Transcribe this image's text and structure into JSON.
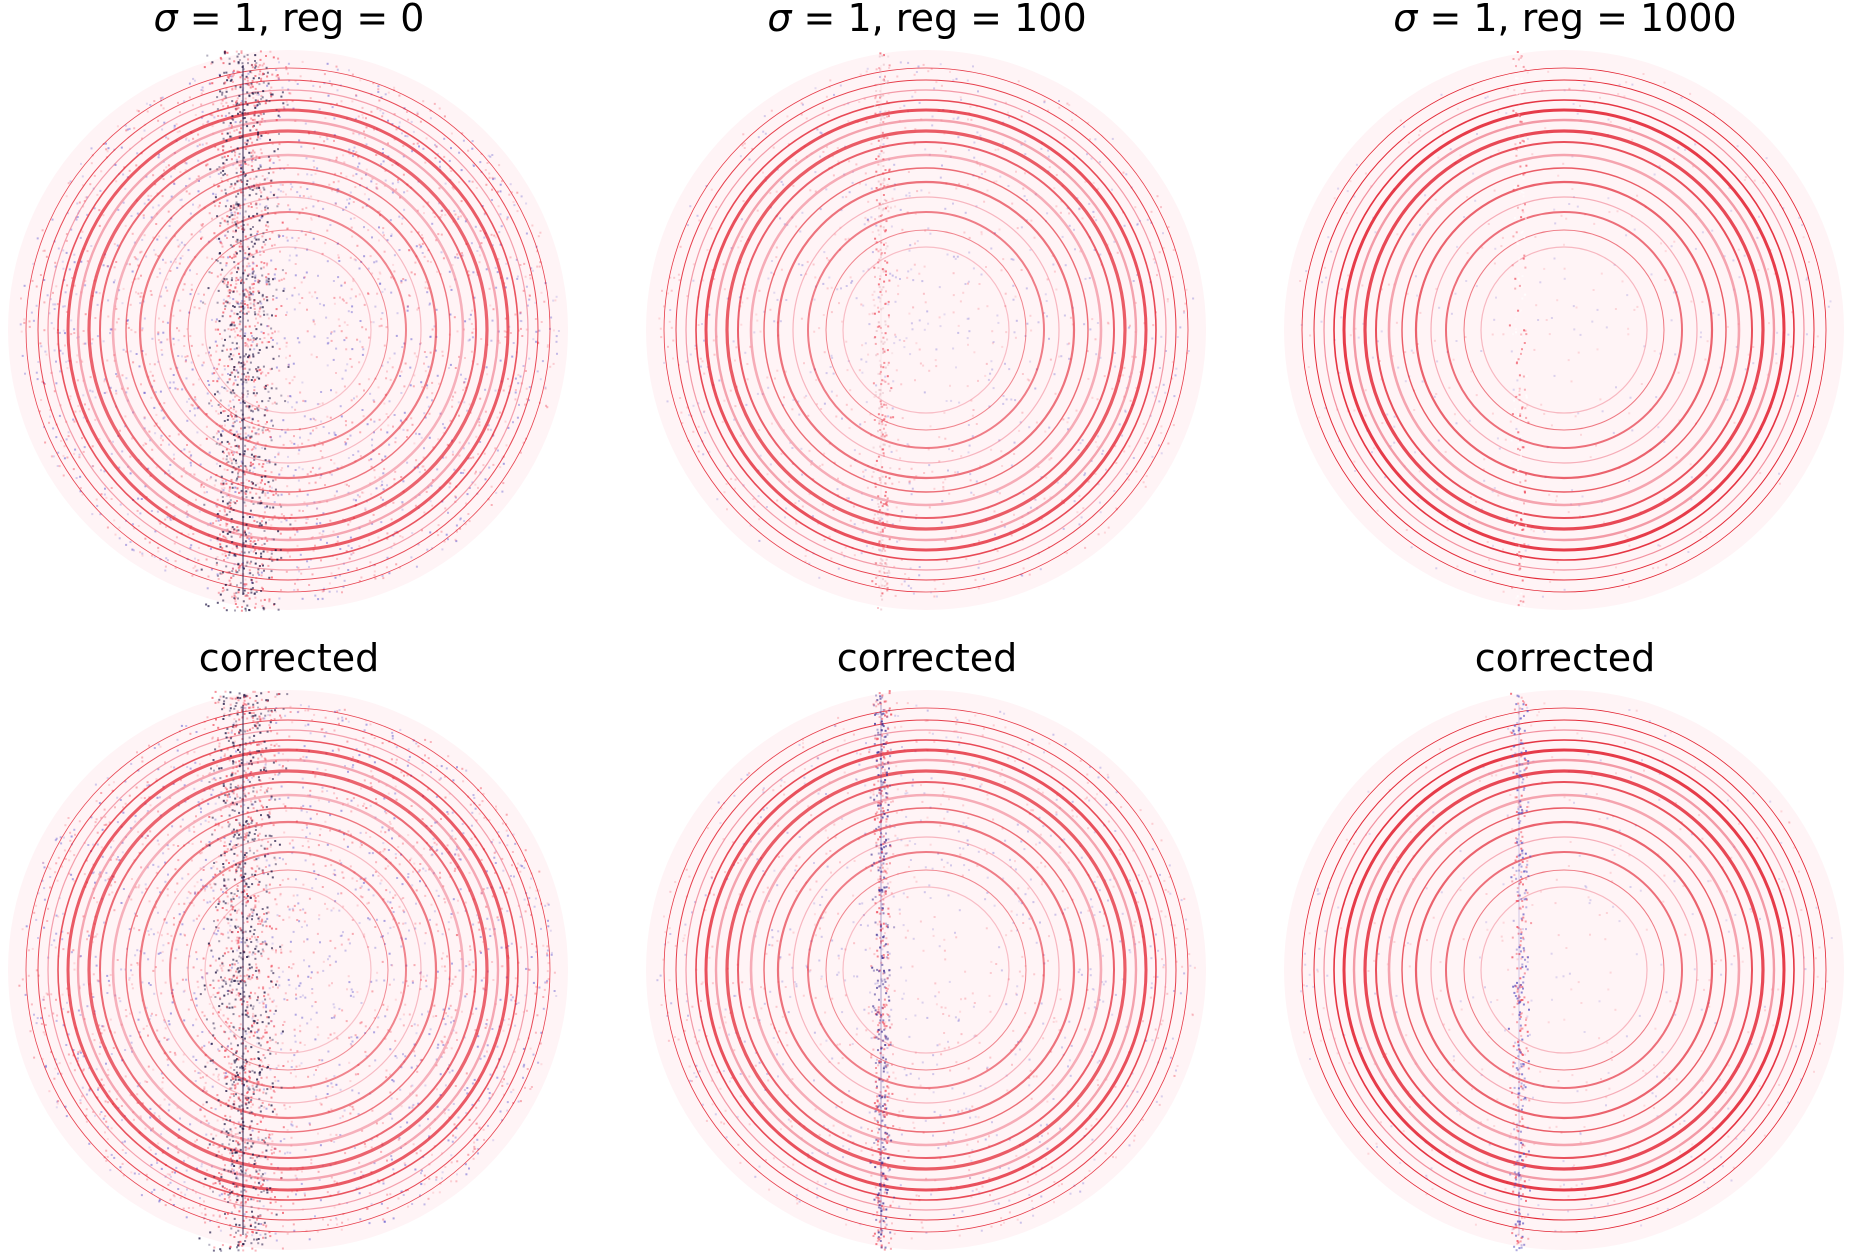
{
  "figure": {
    "panels": [
      {
        "title_sigma": "σ",
        "title_rest": " = 1, reg = 0",
        "image_label": "diffraction image sigma 1 reg 0",
        "noise": 0.95,
        "streak": 1.0,
        "ring_strength": 0.8,
        "streak_color": "#1a1040"
      },
      {
        "title_sigma": "σ",
        "title_rest": " = 1, reg = 100",
        "image_label": "diffraction image sigma 1 reg 100",
        "noise": 0.45,
        "streak": 0.25,
        "ring_strength": 0.85,
        "streak_color": "#e8c0c8"
      },
      {
        "title_sigma": "σ",
        "title_rest": " = 1, reg = 1000",
        "image_label": "diffraction image sigma 1 reg 1000",
        "noise": 0.18,
        "streak": 0.15,
        "ring_strength": 0.95,
        "streak_color": "#ffffff"
      },
      {
        "title_sigma": "",
        "title_rest": "corrected",
        "image_label": "corrected diffraction image reg 0",
        "noise": 0.95,
        "streak": 1.0,
        "ring_strength": 0.8,
        "streak_color": "#1a1040"
      },
      {
        "title_sigma": "",
        "title_rest": "corrected",
        "image_label": "corrected diffraction image reg 100",
        "noise": 0.45,
        "streak": 0.45,
        "ring_strength": 0.85,
        "streak_color": "#3a2a90"
      },
      {
        "title_sigma": "",
        "title_rest": "corrected",
        "image_label": "corrected diffraction image reg 1000",
        "noise": 0.18,
        "streak": 0.3,
        "ring_strength": 0.95,
        "streak_color": "#5a50c0"
      }
    ],
    "colors": {
      "ring": "#e01020",
      "ring_light": "#f08090",
      "noise_red": "#f05060",
      "noise_blue": "#4a40c8",
      "background_tint": "#fff4f6"
    }
  }
}
